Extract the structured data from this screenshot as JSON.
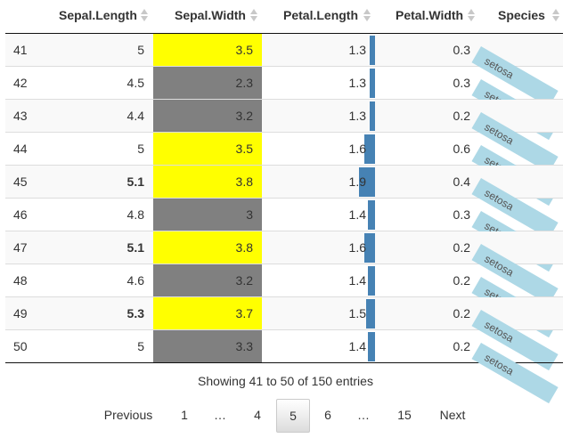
{
  "columns": [
    {
      "label": ""
    },
    {
      "label": "Sepal.Length"
    },
    {
      "label": "Sepal.Width"
    },
    {
      "label": "Petal.Length"
    },
    {
      "label": "Petal.Width"
    },
    {
      "label": "Species"
    }
  ],
  "rows": [
    {
      "idx": "41",
      "sl": "5",
      "sl_bold": false,
      "sw": "3.5",
      "sw_color": "#ffff00",
      "pl": "1.3",
      "pl_value": 1.3,
      "pw": "0.3",
      "species": "setosa"
    },
    {
      "idx": "42",
      "sl": "4.5",
      "sl_bold": false,
      "sw": "2.3",
      "sw_color": "#808080",
      "pl": "1.3",
      "pl_value": 1.3,
      "pw": "0.3",
      "species": "setosa"
    },
    {
      "idx": "43",
      "sl": "4.4",
      "sl_bold": false,
      "sw": "3.2",
      "sw_color": "#808080",
      "pl": "1.3",
      "pl_value": 1.3,
      "pw": "0.2",
      "species": "setosa"
    },
    {
      "idx": "44",
      "sl": "5",
      "sl_bold": false,
      "sw": "3.5",
      "sw_color": "#ffff00",
      "pl": "1.6",
      "pl_value": 1.6,
      "pw": "0.6",
      "species": "setosa"
    },
    {
      "idx": "45",
      "sl": "5.1",
      "sl_bold": true,
      "sw": "3.8",
      "sw_color": "#ffff00",
      "pl": "1.9",
      "pl_value": 1.9,
      "pw": "0.4",
      "species": "setosa"
    },
    {
      "idx": "46",
      "sl": "4.8",
      "sl_bold": false,
      "sw": "3",
      "sw_color": "#808080",
      "pl": "1.4",
      "pl_value": 1.4,
      "pw": "0.3",
      "species": "setosa"
    },
    {
      "idx": "47",
      "sl": "5.1",
      "sl_bold": true,
      "sw": "3.8",
      "sw_color": "#ffff00",
      "pl": "1.6",
      "pl_value": 1.6,
      "pw": "0.2",
      "species": "setosa"
    },
    {
      "idx": "48",
      "sl": "4.6",
      "sl_bold": false,
      "sw": "3.2",
      "sw_color": "#808080",
      "pl": "1.4",
      "pl_value": 1.4,
      "pw": "0.2",
      "species": "setosa"
    },
    {
      "idx": "49",
      "sl": "5.3",
      "sl_bold": true,
      "sw": "3.7",
      "sw_color": "#ffff00",
      "pl": "1.5",
      "pl_value": 1.5,
      "pw": "0.2",
      "species": "setosa"
    },
    {
      "idx": "50",
      "sl": "5",
      "sl_bold": false,
      "sw": "3.3",
      "sw_color": "#808080",
      "pl": "1.4",
      "pl_value": 1.4,
      "pw": "0.2",
      "species": "setosa"
    }
  ],
  "petal_length_bar": {
    "min": 1.0,
    "max": 6.9,
    "color": "#4682b4"
  },
  "species_color": "#add8e6",
  "info": "Showing 41 to 50 of 150 entries",
  "pagination": {
    "previous": "Previous",
    "next": "Next",
    "pages": [
      "1",
      "…",
      "4",
      "5",
      "6",
      "…",
      "15"
    ],
    "current": "5"
  },
  "icons": {
    "sort": "sort-both-icon"
  }
}
